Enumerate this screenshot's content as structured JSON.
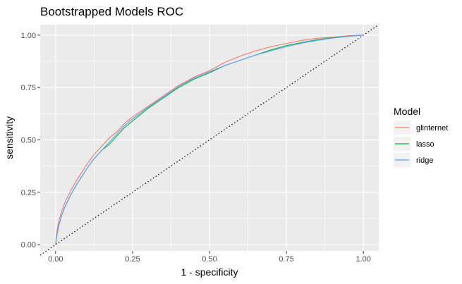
{
  "chart_data": {
    "type": "line",
    "title": "Bootstrapped Models ROC",
    "xlabel": "1 - specificity",
    "ylabel": "sensitivity",
    "xlim": [
      -0.05,
      1.05
    ],
    "ylim": [
      -0.03,
      1.05
    ],
    "x_ticks": [
      "0.00",
      "0.25",
      "0.50",
      "0.75",
      "1.00"
    ],
    "y_ticks": [
      "0.00",
      "0.25",
      "0.50",
      "0.75",
      "1.00"
    ],
    "grid": true,
    "legend": {
      "title": "Model",
      "position": "right"
    },
    "reference_line": {
      "style": "dotted",
      "from": [
        -0.05,
        -0.05
      ],
      "to": [
        1.05,
        1.05
      ]
    },
    "series": [
      {
        "name": "glinternet",
        "color": "#F8766D",
        "x": [
          0,
          0.005,
          0.01,
          0.02,
          0.03,
          0.05,
          0.07,
          0.1,
          0.125,
          0.15,
          0.175,
          0.2,
          0.225,
          0.25,
          0.3,
          0.35,
          0.4,
          0.45,
          0.5,
          0.55,
          0.6,
          0.65,
          0.7,
          0.75,
          0.8,
          0.85,
          0.9,
          0.95,
          1.0
        ],
        "y": [
          0,
          0.07,
          0.11,
          0.16,
          0.2,
          0.26,
          0.31,
          0.38,
          0.43,
          0.47,
          0.51,
          0.54,
          0.58,
          0.61,
          0.66,
          0.71,
          0.76,
          0.8,
          0.83,
          0.87,
          0.9,
          0.925,
          0.945,
          0.96,
          0.975,
          0.985,
          0.99,
          0.997,
          1.0
        ]
      },
      {
        "name": "lasso",
        "color": "#00BA38",
        "x": [
          0,
          0.005,
          0.01,
          0.02,
          0.03,
          0.05,
          0.07,
          0.1,
          0.125,
          0.15,
          0.175,
          0.2,
          0.225,
          0.25,
          0.3,
          0.35,
          0.4,
          0.45,
          0.5,
          0.55,
          0.6,
          0.65,
          0.7,
          0.75,
          0.8,
          0.85,
          0.9,
          0.95,
          1.0
        ],
        "y": [
          0,
          0.05,
          0.09,
          0.14,
          0.18,
          0.24,
          0.29,
          0.36,
          0.41,
          0.45,
          0.48,
          0.52,
          0.56,
          0.59,
          0.65,
          0.7,
          0.75,
          0.79,
          0.82,
          0.855,
          0.88,
          0.905,
          0.93,
          0.95,
          0.965,
          0.978,
          0.988,
          0.995,
          1.0
        ]
      },
      {
        "name": "ridge",
        "color": "#619CFF",
        "x": [
          0,
          0.005,
          0.01,
          0.02,
          0.03,
          0.05,
          0.07,
          0.1,
          0.125,
          0.15,
          0.175,
          0.2,
          0.225,
          0.25,
          0.3,
          0.35,
          0.4,
          0.45,
          0.5,
          0.55,
          0.6,
          0.65,
          0.7,
          0.75,
          0.8,
          0.85,
          0.9,
          0.95,
          1.0
        ],
        "y": [
          0,
          0.05,
          0.09,
          0.14,
          0.18,
          0.24,
          0.29,
          0.36,
          0.41,
          0.45,
          0.49,
          0.53,
          0.57,
          0.6,
          0.655,
          0.705,
          0.755,
          0.795,
          0.825,
          0.855,
          0.88,
          0.905,
          0.925,
          0.945,
          0.962,
          0.975,
          0.986,
          0.994,
          1.0
        ]
      }
    ]
  }
}
